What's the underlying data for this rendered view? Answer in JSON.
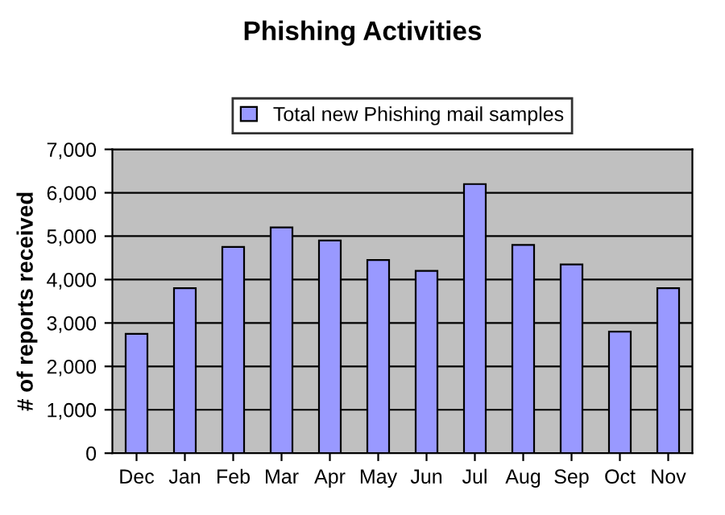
{
  "chart_data": {
    "type": "bar",
    "title": "Phishing Activities",
    "ylabel": "# of reports received",
    "categories": [
      "Dec",
      "Jan",
      "Feb",
      "Mar",
      "Apr",
      "May",
      "Jun",
      "Jul",
      "Aug",
      "Sep",
      "Oct",
      "Nov"
    ],
    "series": [
      {
        "name": "Total new Phishing mail samples",
        "color": "#9999ff",
        "values": [
          2750,
          3800,
          4750,
          5200,
          4900,
          4450,
          4200,
          6200,
          4800,
          4350,
          2800,
          3800
        ]
      }
    ],
    "ylim": [
      0,
      7000
    ],
    "yticks": [
      {
        "value": 0,
        "label": "0"
      },
      {
        "value": 1000,
        "label": "1,000"
      },
      {
        "value": 2000,
        "label": "2,000"
      },
      {
        "value": 3000,
        "label": "3,000"
      },
      {
        "value": 4000,
        "label": "4,000"
      },
      {
        "value": 5000,
        "label": "5,000"
      },
      {
        "value": 6000,
        "label": "6,000"
      },
      {
        "value": 7000,
        "label": "7,000"
      }
    ],
    "grid": "y",
    "legend": "top"
  }
}
